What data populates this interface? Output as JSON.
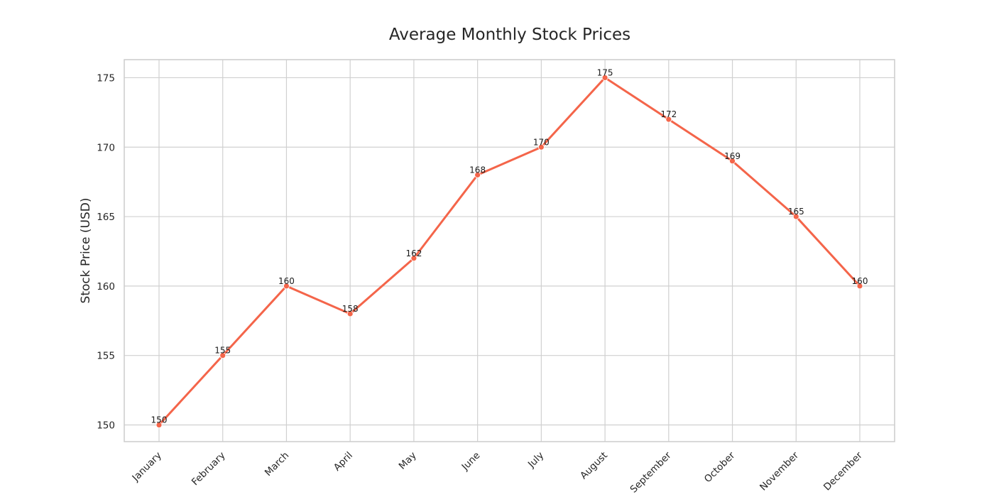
{
  "chart_data": {
    "type": "line",
    "title": "Average Monthly Stock Prices",
    "xlabel": "",
    "ylabel": "Stock Price (USD)",
    "categories": [
      "January",
      "February",
      "March",
      "April",
      "May",
      "June",
      "July",
      "August",
      "September",
      "October",
      "November",
      "December"
    ],
    "series": [
      {
        "values": [
          150,
          155,
          160,
          158,
          162,
          168,
          170,
          175,
          172,
          169,
          165,
          160
        ],
        "color": "#f4654a",
        "marker": "circle",
        "data_labels": true
      }
    ],
    "yticks": [
      150,
      155,
      160,
      165,
      170,
      175
    ],
    "ylim": [
      148.8,
      176.3
    ],
    "xtick_rotation": -45,
    "grid": true,
    "legend": "none"
  },
  "colors": {
    "line": "#f4654a",
    "grid": "#d0d0d0",
    "frame": "#cccccc",
    "text": "#262626"
  }
}
